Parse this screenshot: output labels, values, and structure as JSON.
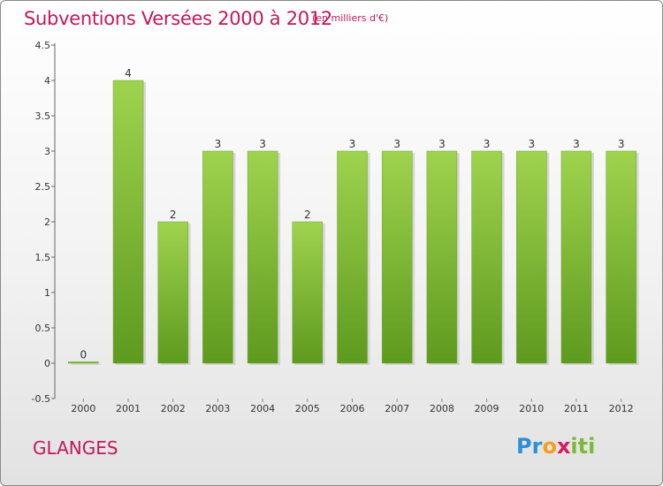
{
  "chart_data": {
    "type": "bar",
    "title": "Subventions Versées 2000 à 2012",
    "subtitle": "(en milliers d'€)",
    "categories": [
      "2000",
      "2001",
      "2002",
      "2003",
      "2004",
      "2005",
      "2006",
      "2007",
      "2008",
      "2009",
      "2010",
      "2011",
      "2012"
    ],
    "values": [
      0,
      4,
      2,
      3,
      3,
      2,
      3,
      3,
      3,
      3,
      3,
      3,
      3
    ],
    "value_labels": [
      "0",
      "4",
      "2",
      "3",
      "3",
      "2",
      "3",
      "3",
      "3",
      "3",
      "3",
      "3",
      "3"
    ],
    "y_ticks": [
      "4.5",
      "4",
      "3.5",
      "3",
      "2.5",
      "2",
      "1.5",
      "1",
      "0.5",
      "0",
      "-0.5"
    ],
    "ylim": [
      -0.5,
      4.5
    ],
    "xlabel": "",
    "ylabel": "",
    "grid": false,
    "bar_color": "#7cba3a",
    "bar_color_light": "#9fd34e",
    "bar_color_dark": "#5e9a1e"
  },
  "commune": "GLANGES",
  "logo": {
    "p1": "Pr",
    "p2": "o",
    "p3": "x",
    "p4": "iti"
  },
  "colors": {
    "title": "#c2185b",
    "frame_border": "#8a8a8a"
  }
}
